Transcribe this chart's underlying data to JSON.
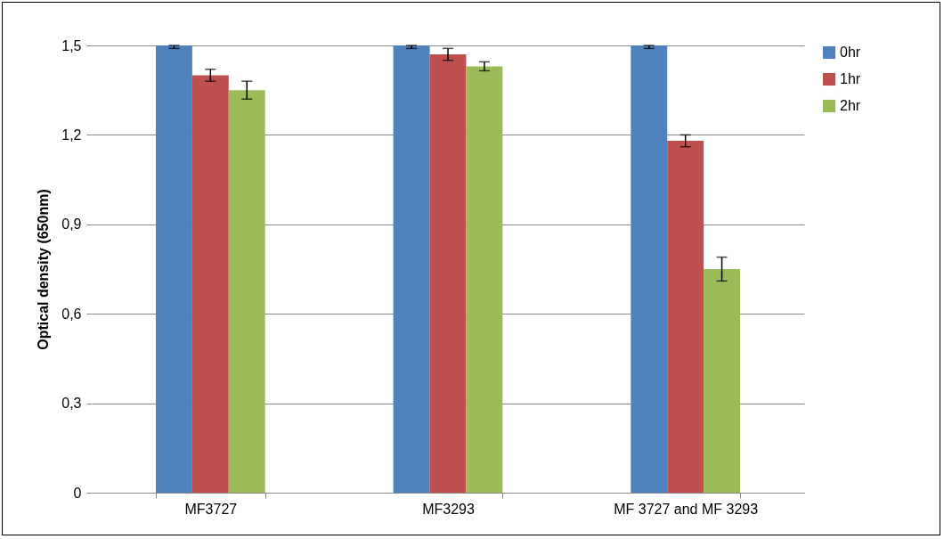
{
  "chart_data": {
    "type": "bar",
    "ylabel": "Optical density (650nm)",
    "categories": [
      "MF3727",
      "MF3293",
      "MF 3727 and MF 3293"
    ],
    "series": [
      {
        "name": "0hr",
        "color": "#4f81bd",
        "values": [
          1.5,
          1.5,
          1.5
        ],
        "errors": [
          [
            1.49,
            1.5
          ],
          [
            1.49,
            1.5
          ],
          [
            1.49,
            1.5
          ]
        ]
      },
      {
        "name": "1hr",
        "color": "#c0504d",
        "values": [
          1.4,
          1.47,
          1.18
        ],
        "errors": [
          0.02,
          0.02,
          0.02
        ]
      },
      {
        "name": "2hr",
        "color": "#9bbb59",
        "values": [
          1.35,
          1.43,
          0.75
        ],
        "errors": [
          0.03,
          0.015,
          0.04
        ]
      }
    ],
    "ylim": [
      0,
      1.5
    ],
    "yticks": [
      {
        "value": 0,
        "label": "0"
      },
      {
        "value": 0.3,
        "label": "0,3"
      },
      {
        "value": 0.6,
        "label": "0,6"
      },
      {
        "value": 0.9,
        "label": "0,9"
      },
      {
        "value": 1.2,
        "label": "1,2"
      },
      {
        "value": 1.5,
        "label": "1,5"
      }
    ],
    "grid": "y",
    "legend": "right"
  }
}
